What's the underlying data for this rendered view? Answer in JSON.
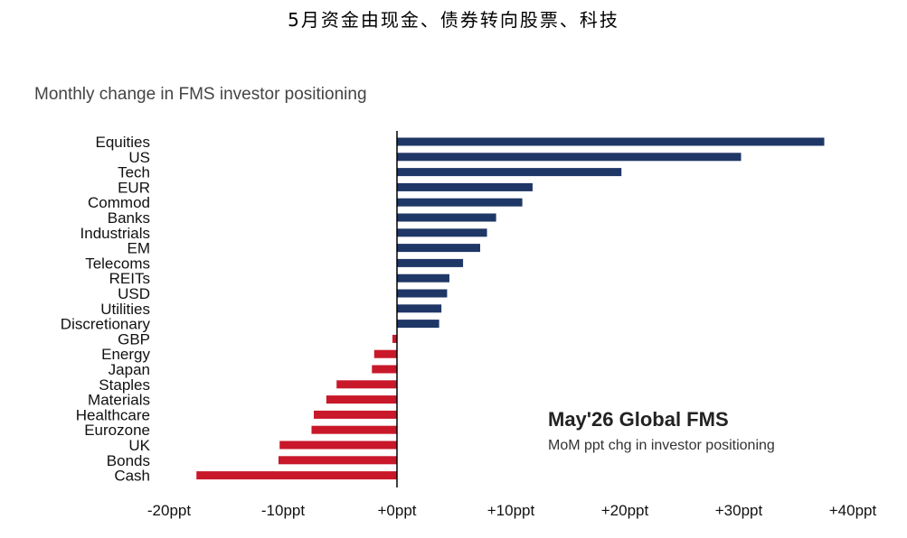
{
  "page": {
    "title": "5月资金由现金、债券转向股票、科技"
  },
  "chart_data": {
    "type": "bar",
    "orientation": "horizontal",
    "subtitle": "Monthly change in FMS investor positioning",
    "annotation_title": "May'26 Global FMS",
    "annotation_subtitle": "MoM ppt chg in investor positioning",
    "categories": [
      "Equities",
      "US",
      "Tech",
      "EUR",
      "Commod",
      "Banks",
      "Industrials",
      "EM",
      "Telecoms",
      "REITs",
      "USD",
      "Utilities",
      "Discretionary",
      "GBP",
      "Energy",
      "Japan",
      "Staples",
      "Materials",
      "Healthcare",
      "Eurozone",
      "UK",
      "Bonds",
      "Cash"
    ],
    "values": [
      37.5,
      30.2,
      19.7,
      11.9,
      11.0,
      8.7,
      7.9,
      7.3,
      5.8,
      4.6,
      4.4,
      3.9,
      3.7,
      -0.4,
      -2.0,
      -2.2,
      -5.3,
      -6.2,
      -7.3,
      -7.5,
      -10.3,
      -10.4,
      -17.6
    ],
    "xlim": [
      -20,
      40
    ],
    "ticks": [
      -20,
      -10,
      0,
      10,
      20,
      30,
      40
    ],
    "tick_labels": [
      "-20ppt",
      "-10ppt",
      "+0ppt",
      "+10ppt",
      "+20ppt",
      "+30ppt",
      "+40ppt"
    ],
    "colors": {
      "positive": "#1f3766",
      "negative": "#c8182a",
      "axis": "#000000"
    }
  }
}
